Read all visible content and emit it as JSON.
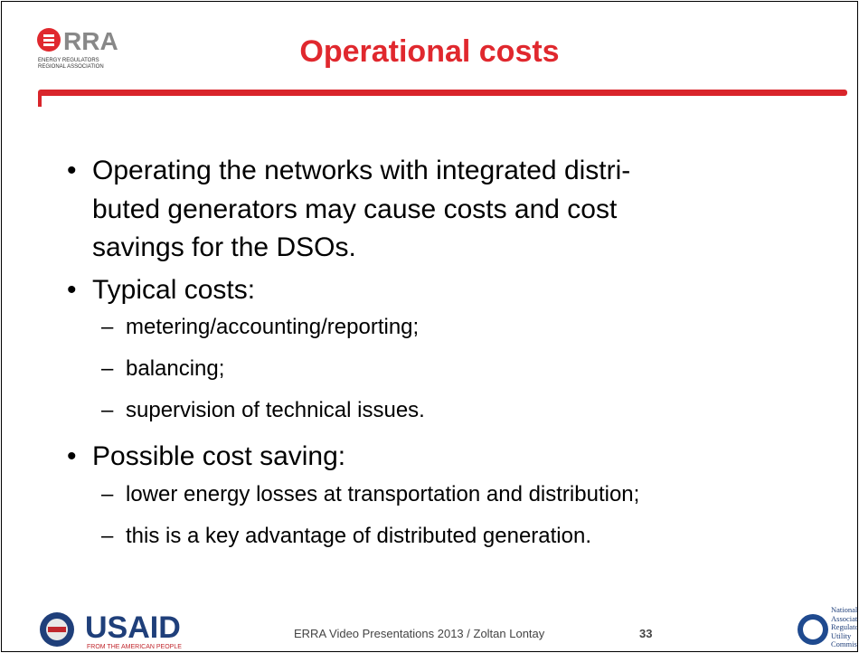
{
  "header": {
    "logo": {
      "name": "ERRA",
      "line1": "ENERGY REGULATORS",
      "line2": "REGIONAL ASSOCIATION"
    },
    "title": "Operational costs"
  },
  "bullets": [
    {
      "lines": [
        "Operating the networks with integrated distri-",
        "buted generators may cause costs and cost",
        "savings for the DSOs."
      ],
      "sub": []
    },
    {
      "lines": [
        "Typical costs:"
      ],
      "sub": [
        "metering/accounting/reporting;",
        "balancing;",
        "supervision of technical issues."
      ]
    },
    {
      "lines": [
        "Possible cost saving:"
      ],
      "sub": [
        "lower energy losses at transportation and distribution;",
        "this is a key advantage of distributed generation."
      ]
    }
  ],
  "footer": {
    "usaid": {
      "name": "USAID",
      "tagline": "FROM THE AMERICAN PEOPLE"
    },
    "text": "ERRA Video Presentations 2013 / Zoltan Lontay",
    "page": "33",
    "naruc": [
      "National",
      "Association of",
      "Regulatory",
      "Utility",
      "Commissioners"
    ]
  }
}
